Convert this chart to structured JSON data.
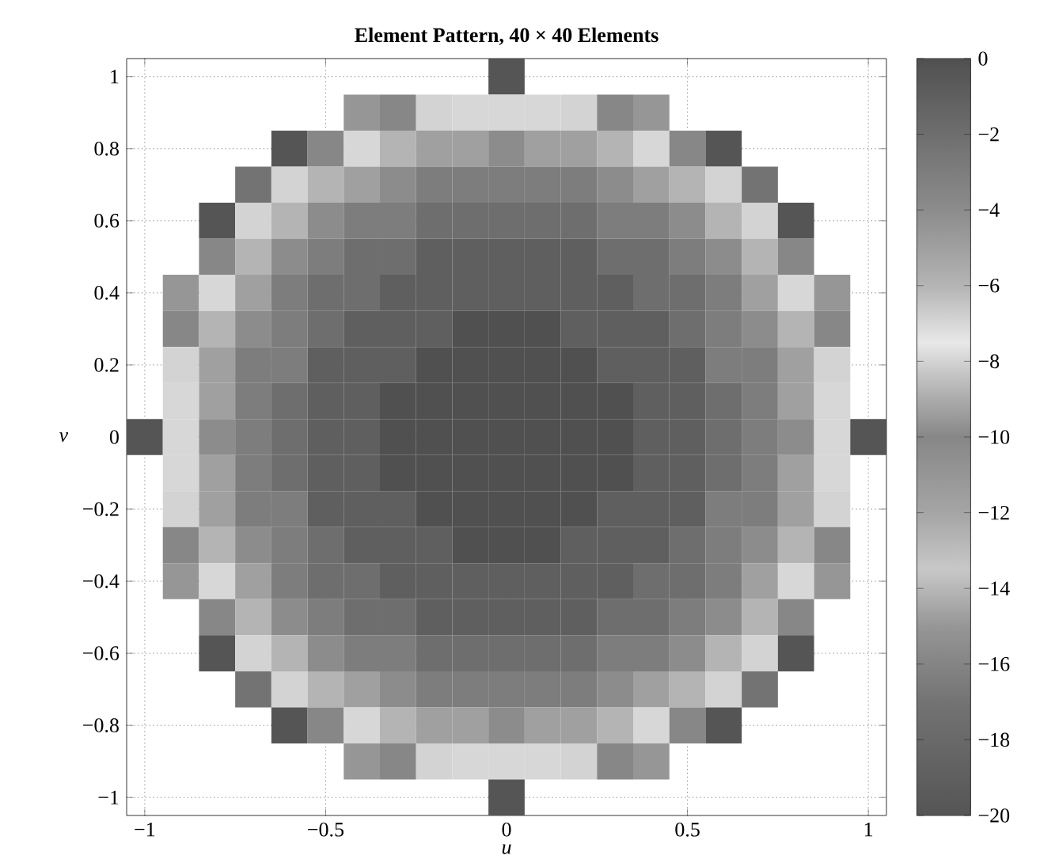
{
  "chart_data": {
    "type": "heatmap",
    "title": "Element Pattern, 40 × 40 Elements",
    "xlabel": "u",
    "ylabel": "v",
    "categories": [
      "−1",
      null,
      null,
      null,
      null,
      "−0.5",
      null,
      null,
      null,
      null,
      "0",
      null,
      null,
      null,
      null,
      "0.5",
      null,
      null,
      null,
      null,
      "1"
    ],
    "y_categories": [
      "1",
      null,
      "0.8",
      null,
      "0.6",
      null,
      "0.4",
      null,
      "0.2",
      null,
      "0",
      null,
      "−0.2",
      null,
      "−0.4",
      null,
      "−0.6",
      null,
      "−0.8",
      null,
      "−1"
    ],
    "cells": [
      [
        null,
        null,
        null,
        null,
        null,
        null,
        null,
        null,
        null,
        null,
        -20,
        null,
        null,
        null,
        null,
        null,
        null,
        null,
        null,
        null,
        null
      ],
      [
        null,
        null,
        null,
        null,
        null,
        null,
        -15,
        -10,
        -8,
        -7,
        -7,
        -7,
        -8,
        -10,
        -15,
        null,
        null,
        null,
        null,
        null,
        null
      ],
      [
        null,
        null,
        null,
        null,
        -20,
        -10,
        -7,
        -6,
        -5,
        -5,
        -4,
        -5,
        -5,
        -6,
        -7,
        -10,
        -20,
        null,
        null,
        null,
        null
      ],
      [
        null,
        null,
        null,
        -17,
        -8,
        -6,
        -5,
        -4,
        -3,
        -3,
        -3,
        -3,
        -3,
        -4,
        -5,
        -6,
        -8,
        -17,
        null,
        null,
        null
      ],
      [
        null,
        null,
        -20,
        -8,
        -6,
        -4,
        -3,
        -3,
        -2,
        -2,
        -2,
        -2,
        -2,
        -3,
        -3,
        -4,
        -6,
        -8,
        -20,
        null,
        null
      ],
      [
        null,
        null,
        -10,
        -6,
        -4,
        -3,
        -2,
        -2,
        -1,
        -1,
        -1,
        -1,
        -1,
        -2,
        -2,
        -3,
        -4,
        -6,
        -10,
        null,
        null
      ],
      [
        null,
        -15,
        -7,
        -5,
        -3,
        -2,
        -2,
        -1,
        -1,
        -1,
        -1,
        -1,
        -1,
        -1,
        -2,
        -2,
        -3,
        -5,
        -7,
        -15,
        null
      ],
      [
        null,
        -10,
        -6,
        -4,
        -3,
        -2,
        -1,
        -1,
        -1,
        0,
        0,
        0,
        -1,
        -1,
        -1,
        -2,
        -3,
        -4,
        -6,
        -10,
        null
      ],
      [
        null,
        -8,
        -5,
        -3,
        -3,
        -1,
        -1,
        -1,
        0,
        0,
        0,
        0,
        0,
        -1,
        -1,
        -1,
        -3,
        -3,
        -5,
        -8,
        null
      ],
      [
        null,
        -7,
        -5,
        -3,
        -2,
        -1,
        -1,
        0,
        0,
        0,
        0,
        0,
        0,
        0,
        -1,
        -1,
        -2,
        -3,
        -5,
        -7,
        null
      ],
      [
        -20,
        -7,
        -4,
        -3,
        -2,
        -1,
        -1,
        0,
        0,
        0,
        0,
        0,
        0,
        0,
        -1,
        -1,
        -2,
        -3,
        -4,
        -7,
        -20
      ],
      [
        null,
        -7,
        -5,
        -3,
        -2,
        -1,
        -1,
        0,
        0,
        0,
        0,
        0,
        0,
        0,
        -1,
        -1,
        -2,
        -3,
        -5,
        -7,
        null
      ],
      [
        null,
        -8,
        -5,
        -3,
        -3,
        -1,
        -1,
        -1,
        0,
        0,
        0,
        0,
        0,
        -1,
        -1,
        -1,
        -3,
        -3,
        -5,
        -8,
        null
      ],
      [
        null,
        -10,
        -6,
        -4,
        -3,
        -2,
        -1,
        -1,
        -1,
        0,
        0,
        0,
        -1,
        -1,
        -1,
        -2,
        -3,
        -4,
        -6,
        -10,
        null
      ],
      [
        null,
        -15,
        -7,
        -5,
        -3,
        -2,
        -2,
        -1,
        -1,
        -1,
        -1,
        -1,
        -1,
        -1,
        -2,
        -2,
        -3,
        -5,
        -7,
        -15,
        null
      ],
      [
        null,
        null,
        -10,
        -6,
        -4,
        -3,
        -2,
        -2,
        -1,
        -1,
        -1,
        -1,
        -1,
        -2,
        -2,
        -3,
        -4,
        -6,
        -10,
        null,
        null
      ],
      [
        null,
        null,
        -20,
        -8,
        -6,
        -4,
        -3,
        -3,
        -2,
        -2,
        -2,
        -2,
        -2,
        -3,
        -3,
        -4,
        -6,
        -8,
        -20,
        null,
        null
      ],
      [
        null,
        null,
        null,
        -17,
        -8,
        -6,
        -5,
        -4,
        -3,
        -3,
        -3,
        -3,
        -3,
        -4,
        -5,
        -6,
        -8,
        -17,
        null,
        null,
        null
      ],
      [
        null,
        null,
        null,
        null,
        -20,
        -10,
        -7,
        -6,
        -5,
        -5,
        -4,
        -5,
        -5,
        -6,
        -7,
        -10,
        -20,
        null,
        null,
        null,
        null
      ],
      [
        null,
        null,
        null,
        null,
        null,
        null,
        -15,
        -10,
        -8,
        -7,
        -7,
        -7,
        -8,
        -10,
        -15,
        null,
        null,
        null,
        null,
        null,
        null
      ],
      [
        null,
        null,
        null,
        null,
        null,
        null,
        null,
        null,
        null,
        null,
        -20,
        null,
        null,
        null,
        null,
        null,
        null,
        null,
        null,
        null,
        null
      ]
    ],
    "clim": [
      -20,
      0
    ],
    "cticks": [
      0,
      {
        "value": -2,
        "label": "−2"
      },
      {
        "value": -4,
        "label": "−4"
      },
      {
        "value": -6,
        "label": "−6"
      },
      {
        "value": -8,
        "label": "−8"
      },
      {
        "value": -10,
        "label": "−10"
      },
      {
        "value": -12,
        "label": "−12"
      },
      {
        "value": -14,
        "label": "−14"
      },
      {
        "value": -16,
        "label": "−16"
      },
      {
        "value": -18,
        "label": "−18"
      },
      {
        "value": -20,
        "label": "−20"
      }
    ],
    "grid": true
  }
}
